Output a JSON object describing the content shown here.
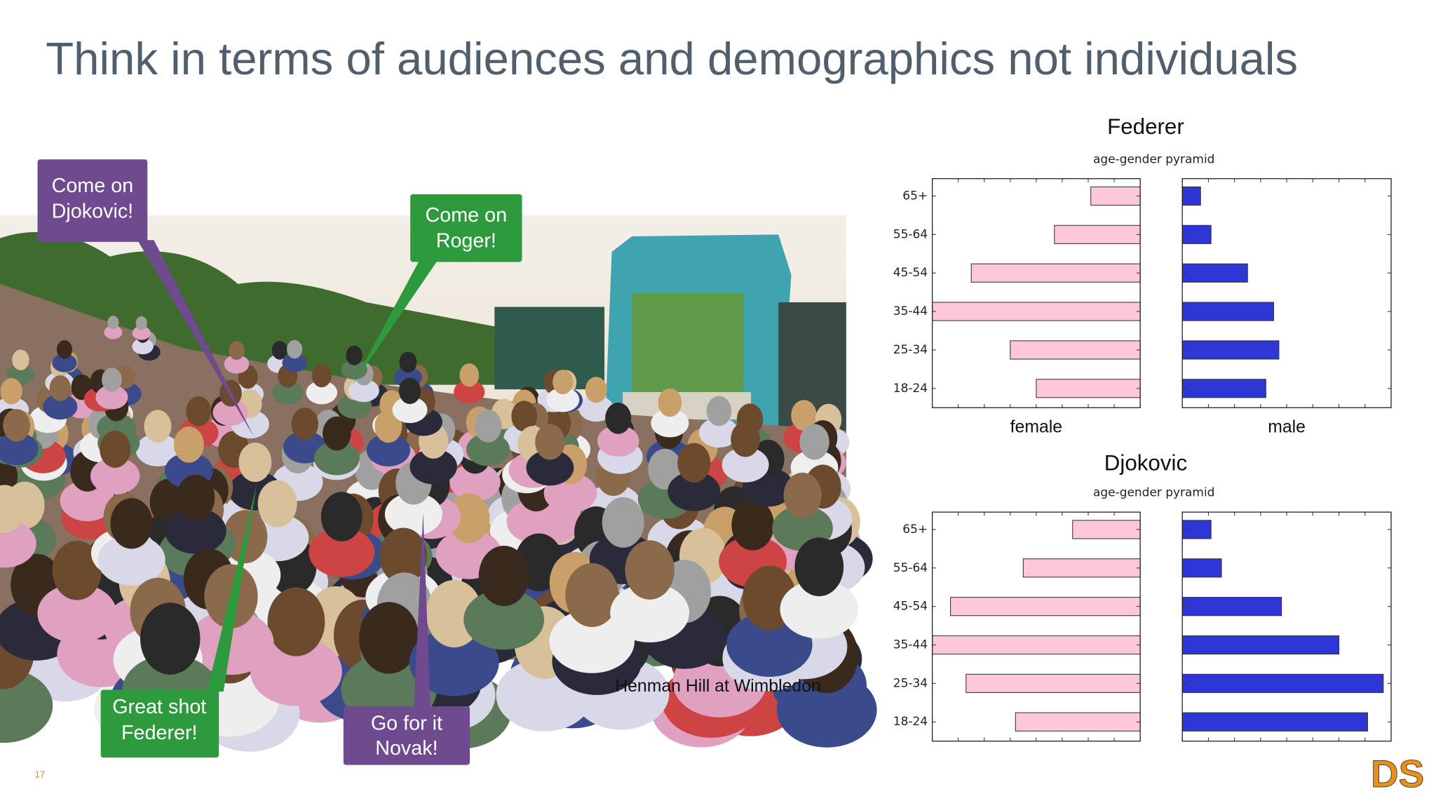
{
  "title": "Think in terms of audiences and demographics not individuals",
  "callouts": [
    {
      "lines": [
        "Come on",
        "Djokovic!"
      ]
    },
    {
      "lines": [
        "Come on",
        "Roger!"
      ]
    },
    {
      "lines": [
        "Great shot",
        "Federer!"
      ]
    },
    {
      "lines": [
        "Go for it",
        "Novak!"
      ]
    }
  ],
  "caption": "Henman Hill at Wimbledon",
  "page_number": "17",
  "logo": "DS",
  "chart_data": [
    {
      "type": "pyramid",
      "title": "Federer",
      "subtitle": "age-gender pyramid",
      "categories": [
        "65+",
        "55-64",
        "45-54",
        "35-44",
        "25-34",
        "18-24"
      ],
      "series": [
        {
          "name": "female",
          "color": "#ffc8d8",
          "values": [
            1.9,
            3.3,
            6.5,
            8.0,
            5.0,
            4.0
          ]
        },
        {
          "name": "male",
          "color": "#2f36d6",
          "values": [
            0.7,
            1.1,
            2.5,
            3.5,
            3.7,
            3.2
          ]
        }
      ],
      "xlim": [
        0,
        8
      ],
      "xticks": [
        0,
        1,
        2,
        3,
        4,
        5,
        6,
        7,
        8
      ]
    },
    {
      "type": "pyramid",
      "title": "Djokovic",
      "subtitle": "age-gender pyramid",
      "categories": [
        "65+",
        "55-64",
        "45-54",
        "35-44",
        "25-34",
        "18-24"
      ],
      "series": [
        {
          "name": "female",
          "color": "#ffc8d8",
          "values": [
            2.6,
            4.5,
            7.3,
            8.0,
            6.7,
            4.8
          ]
        },
        {
          "name": "male",
          "color": "#2f36d6",
          "values": [
            1.1,
            1.5,
            3.8,
            6.0,
            7.7,
            7.1
          ]
        }
      ],
      "xlim": [
        0,
        8
      ],
      "xticks": [
        0,
        1,
        2,
        3,
        4,
        5,
        6,
        7,
        8
      ]
    }
  ]
}
